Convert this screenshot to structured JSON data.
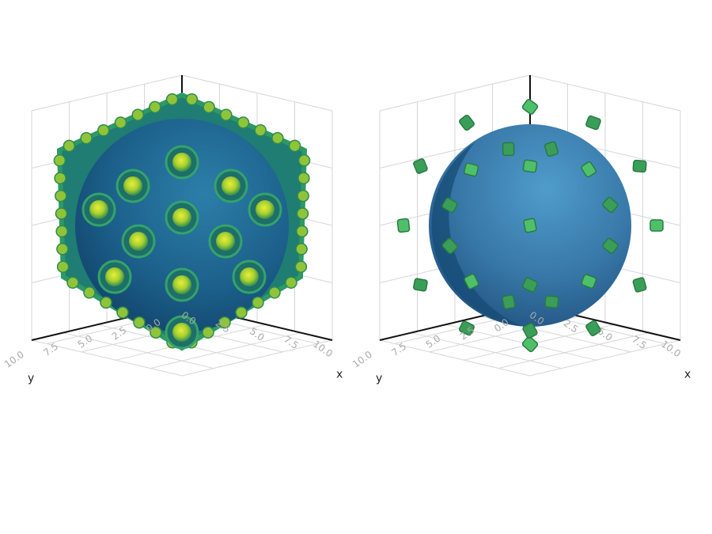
{
  "chart_data": [
    {
      "type": "volume-isosurface",
      "xlabel": "x",
      "ylabel": "y",
      "zlabel": "",
      "xlim": [
        0,
        11
      ],
      "ylim": [
        0,
        11
      ],
      "x_ticks": [
        "0.0",
        "2.5",
        "5.0",
        "7.5",
        "10.0"
      ],
      "y_ticks": [
        "0.0",
        "2.5",
        "5.0",
        "7.5",
        "10.0"
      ],
      "grid": true,
      "colormap": "viridis",
      "surface_color": "#1c5f8c",
      "lattice_color": "#3aa55a"
    },
    {
      "type": "volume-isosurface",
      "xlabel": "x",
      "ylabel": "y",
      "zlabel": "",
      "xlim": [
        0,
        11
      ],
      "ylim": [
        0,
        11
      ],
      "x_ticks": [
        "0.0",
        "2.5",
        "5.0",
        "7.5",
        "10.0"
      ],
      "y_ticks": [
        "0.0",
        "2.5",
        "5.0",
        "7.5",
        "10.0"
      ],
      "grid": true,
      "sphere_color": "#3a80b0",
      "lattice_color": "#3fae5c"
    }
  ]
}
